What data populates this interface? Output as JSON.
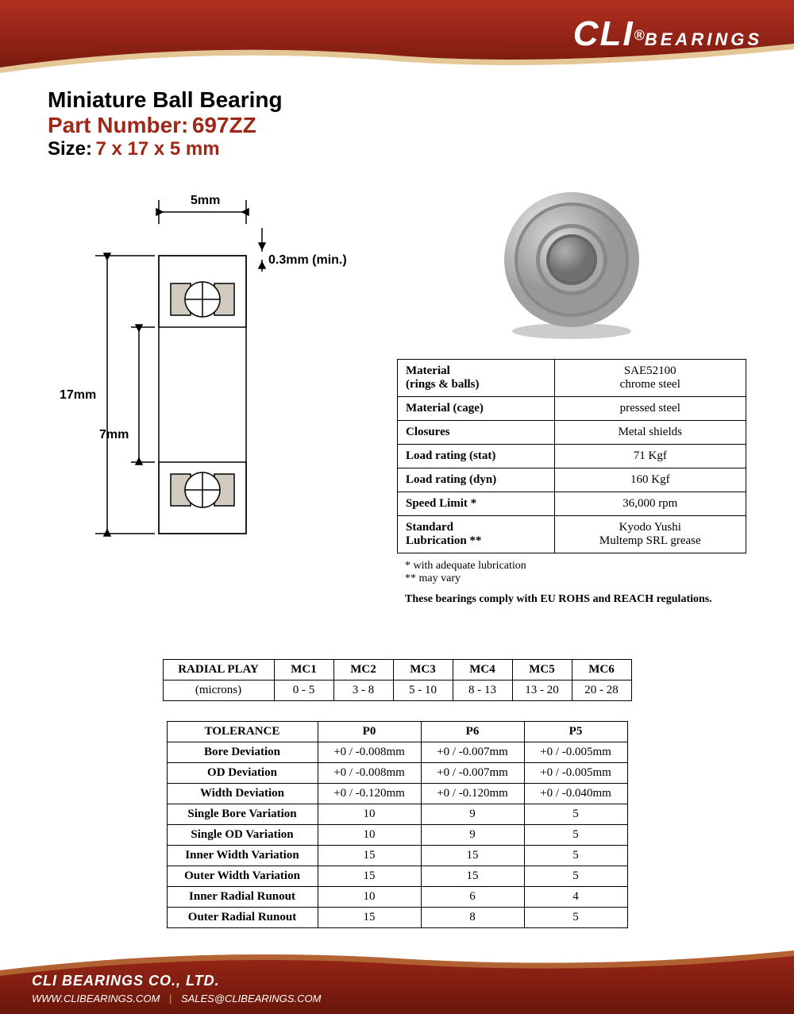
{
  "brand": {
    "name": "CLI",
    "suffix": "BEARINGS",
    "reg": "®"
  },
  "title": {
    "main": "Miniature Ball Bearing",
    "part_label": "Part Number:",
    "part_value": "697ZZ",
    "size_label": "Size:",
    "size_value": "7 x 17 x 5 mm"
  },
  "diagram": {
    "width_label": "5mm",
    "chamfer_label": "0.3mm (min.)",
    "od_label": "17mm",
    "id_label": "7mm",
    "values": {
      "id_mm": 7,
      "od_mm": 17,
      "width_mm": 5,
      "chamfer_min_mm": 0.3
    },
    "stroke_color": "#000000",
    "stroke_width": 1.5,
    "font_size": 16
  },
  "bearing_image": {
    "outer_ring_color": "#c8c8c8",
    "outer_ring_highlight": "#e8e8e8",
    "shield_color": "#b0b0b0",
    "inner_ring_color": "#d0d0d0",
    "bore_color": "#909090",
    "shadow_color": "rgba(0,0,0,0.25)"
  },
  "specs": {
    "rows": [
      {
        "label": "Material\n(rings & balls)",
        "value": "SAE52100\nchrome steel"
      },
      {
        "label": "Material (cage)",
        "value": "pressed steel"
      },
      {
        "label": "Closures",
        "value": "Metal shields"
      },
      {
        "label": "Load rating (stat)",
        "value": "71 Kgf"
      },
      {
        "label": "Load rating (dyn)",
        "value": "160 Kgf"
      },
      {
        "label": "Speed Limit *",
        "value": "36,000 rpm"
      },
      {
        "label": "Standard\nLubrication  **",
        "value": "Kyodo Yushi\nMultemp SRL grease"
      }
    ],
    "note1": "* with adequate lubrication",
    "note2": "** may vary",
    "compliance": "These bearings comply with EU ROHS and REACH  regulations."
  },
  "radial": {
    "header": "RADIAL PLAY",
    "unit": "(microns)",
    "cols": [
      "MC1",
      "MC2",
      "MC3",
      "MC4",
      "MC5",
      "MC6"
    ],
    "vals": [
      "0 - 5",
      "3 - 8",
      "5 - 10",
      "8 - 13",
      "13 - 20",
      "20 - 28"
    ]
  },
  "tolerance": {
    "header": "TOLERANCE",
    "cols": [
      "P0",
      "P6",
      "P5"
    ],
    "rows": [
      {
        "label": "Bore Deviation",
        "vals": [
          "+0 / -0.008mm",
          "+0 / -0.007mm",
          "+0 / -0.005mm"
        ]
      },
      {
        "label": "OD Deviation",
        "vals": [
          "+0 / -0.008mm",
          "+0 / -0.007mm",
          "+0 / -0.005mm"
        ]
      },
      {
        "label": "Width Deviation",
        "vals": [
          "+0 / -0.120mm",
          "+0 / -0.120mm",
          "+0 / -0.040mm"
        ]
      },
      {
        "label": "Single Bore Variation",
        "vals": [
          "10",
          "9",
          "5"
        ]
      },
      {
        "label": "Single OD Variation",
        "vals": [
          "10",
          "9",
          "5"
        ]
      },
      {
        "label": "Inner Width Variation",
        "vals": [
          "15",
          "15",
          "5"
        ]
      },
      {
        "label": "Outer Width Variation",
        "vals": [
          "15",
          "15",
          "5"
        ]
      },
      {
        "label": "Inner Radial Runout",
        "vals": [
          "10",
          "6",
          "4"
        ]
      },
      {
        "label": "Outer Radial Runout",
        "vals": [
          "15",
          "8",
          "5"
        ]
      }
    ]
  },
  "footer": {
    "company": "CLI BEARINGS CO., LTD.",
    "url": "WWW.CLIBEARINGS.COM",
    "email": "SALES@CLIBEARINGS.COM"
  },
  "colors": {
    "brand_red": "#a02818",
    "brand_red_dark": "#7a1a0e",
    "text_black": "#000000",
    "watermark": "#f0ece8",
    "footer_gold": "#d4a050"
  }
}
